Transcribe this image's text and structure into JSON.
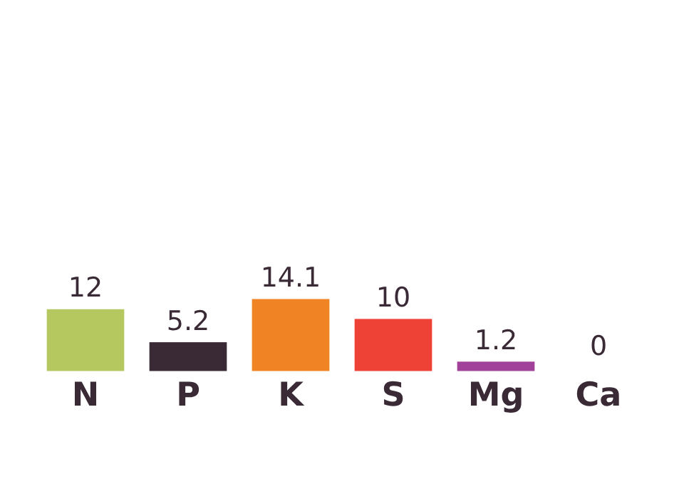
{
  "chart_data": {
    "type": "bar",
    "categories": [
      "N",
      "P",
      "K",
      "S",
      "Mg",
      "Ca"
    ],
    "values": [
      12,
      5.2,
      14.1,
      10,
      1.2,
      0
    ],
    "colors": [
      "#b5c75f",
      "#3a2a36",
      "#f08424",
      "#ee4237",
      "#a2419a",
      "#f2e43c"
    ],
    "data_labels": true
  }
}
